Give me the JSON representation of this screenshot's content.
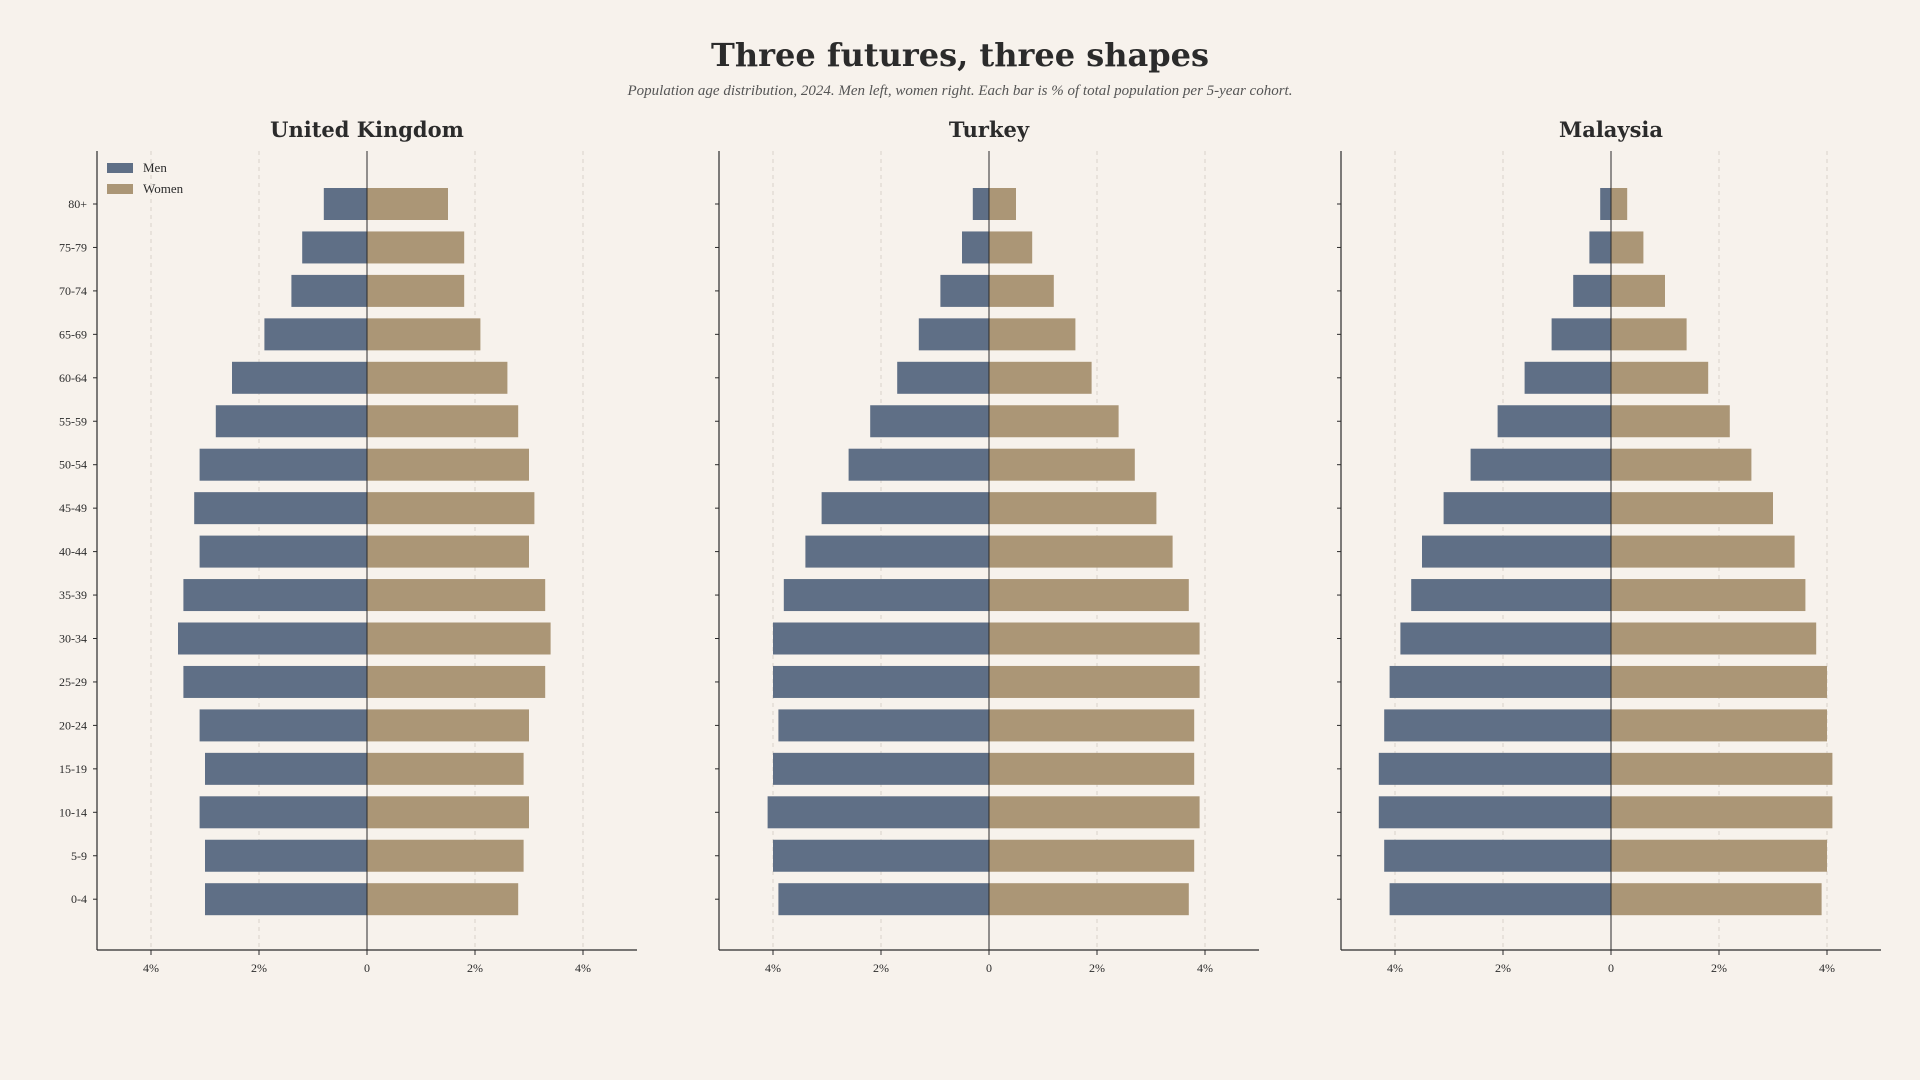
{
  "title": "Three futures, three shapes",
  "subtitle": "Population age distribution, 2024. Men left, women right. Each bar is % of total population per 5-year cohort.",
  "colors": {
    "men": "#5f6f86",
    "women": "#ab9676",
    "background": "#f7f2ec",
    "axis": "#2b2b2b",
    "grid": "#d8d2ca"
  },
  "legend": {
    "men_label": "Men",
    "women_label": "Women",
    "position": "top-left"
  },
  "chart_data": [
    {
      "type": "bar",
      "title": "United Kingdom",
      "categories": [
        "80+",
        "75-79",
        "70-74",
        "65-69",
        "60-64",
        "55-59",
        "50-54",
        "45-49",
        "40-44",
        "35-39",
        "30-34",
        "25-29",
        "20-24",
        "15-19",
        "10-14",
        "5-9",
        "0-4"
      ],
      "series": [
        {
          "name": "Men",
          "values": [
            0.8,
            1.2,
            1.4,
            1.9,
            2.5,
            2.8,
            3.1,
            3.2,
            3.1,
            3.4,
            3.5,
            3.4,
            3.1,
            3.0,
            3.1,
            3.0,
            3.0
          ]
        },
        {
          "name": "Women",
          "values": [
            1.5,
            1.8,
            1.8,
            2.1,
            2.6,
            2.8,
            3.0,
            3.1,
            3.0,
            3.3,
            3.4,
            3.3,
            3.0,
            2.9,
            3.0,
            2.9,
            2.8
          ]
        }
      ],
      "xlim": [
        -5,
        5
      ],
      "xticks": [
        -4,
        -2,
        0,
        2,
        4
      ],
      "xtick_labels": [
        "4%",
        "2%",
        "0",
        "2%",
        "4%"
      ],
      "grid": true
    },
    {
      "type": "bar",
      "title": "Turkey",
      "categories": [
        "80+",
        "75-79",
        "70-74",
        "65-69",
        "60-64",
        "55-59",
        "50-54",
        "45-49",
        "40-44",
        "35-39",
        "30-34",
        "25-29",
        "20-24",
        "15-19",
        "10-14",
        "5-9",
        "0-4"
      ],
      "series": [
        {
          "name": "Men",
          "values": [
            0.3,
            0.5,
            0.9,
            1.3,
            1.7,
            2.2,
            2.6,
            3.1,
            3.4,
            3.8,
            4.0,
            4.0,
            3.9,
            4.0,
            4.1,
            4.0,
            3.9
          ]
        },
        {
          "name": "Women",
          "values": [
            0.5,
            0.8,
            1.2,
            1.6,
            1.9,
            2.4,
            2.7,
            3.1,
            3.4,
            3.7,
            3.9,
            3.9,
            3.8,
            3.8,
            3.9,
            3.8,
            3.7
          ]
        }
      ],
      "xlim": [
        -5,
        5
      ],
      "xticks": [
        -4,
        -2,
        0,
        2,
        4
      ],
      "xtick_labels": [
        "4%",
        "2%",
        "0",
        "2%",
        "4%"
      ],
      "grid": true
    },
    {
      "type": "bar",
      "title": "Malaysia",
      "categories": [
        "80+",
        "75-79",
        "70-74",
        "65-69",
        "60-64",
        "55-59",
        "50-54",
        "45-49",
        "40-44",
        "35-39",
        "30-34",
        "25-29",
        "20-24",
        "15-19",
        "10-14",
        "5-9",
        "0-4"
      ],
      "series": [
        {
          "name": "Men",
          "values": [
            0.2,
            0.4,
            0.7,
            1.1,
            1.6,
            2.1,
            2.6,
            3.1,
            3.5,
            3.7,
            3.9,
            4.1,
            4.2,
            4.3,
            4.3,
            4.2,
            4.1
          ]
        },
        {
          "name": "Women",
          "values": [
            0.3,
            0.6,
            1.0,
            1.4,
            1.8,
            2.2,
            2.6,
            3.0,
            3.4,
            3.6,
            3.8,
            4.0,
            4.0,
            4.1,
            4.1,
            4.0,
            3.9
          ]
        }
      ],
      "xlim": [
        -5,
        5
      ],
      "xticks": [
        -4,
        -2,
        0,
        2,
        4
      ],
      "xtick_labels": [
        "4%",
        "2%",
        "0",
        "2%",
        "4%"
      ],
      "grid": true
    }
  ]
}
